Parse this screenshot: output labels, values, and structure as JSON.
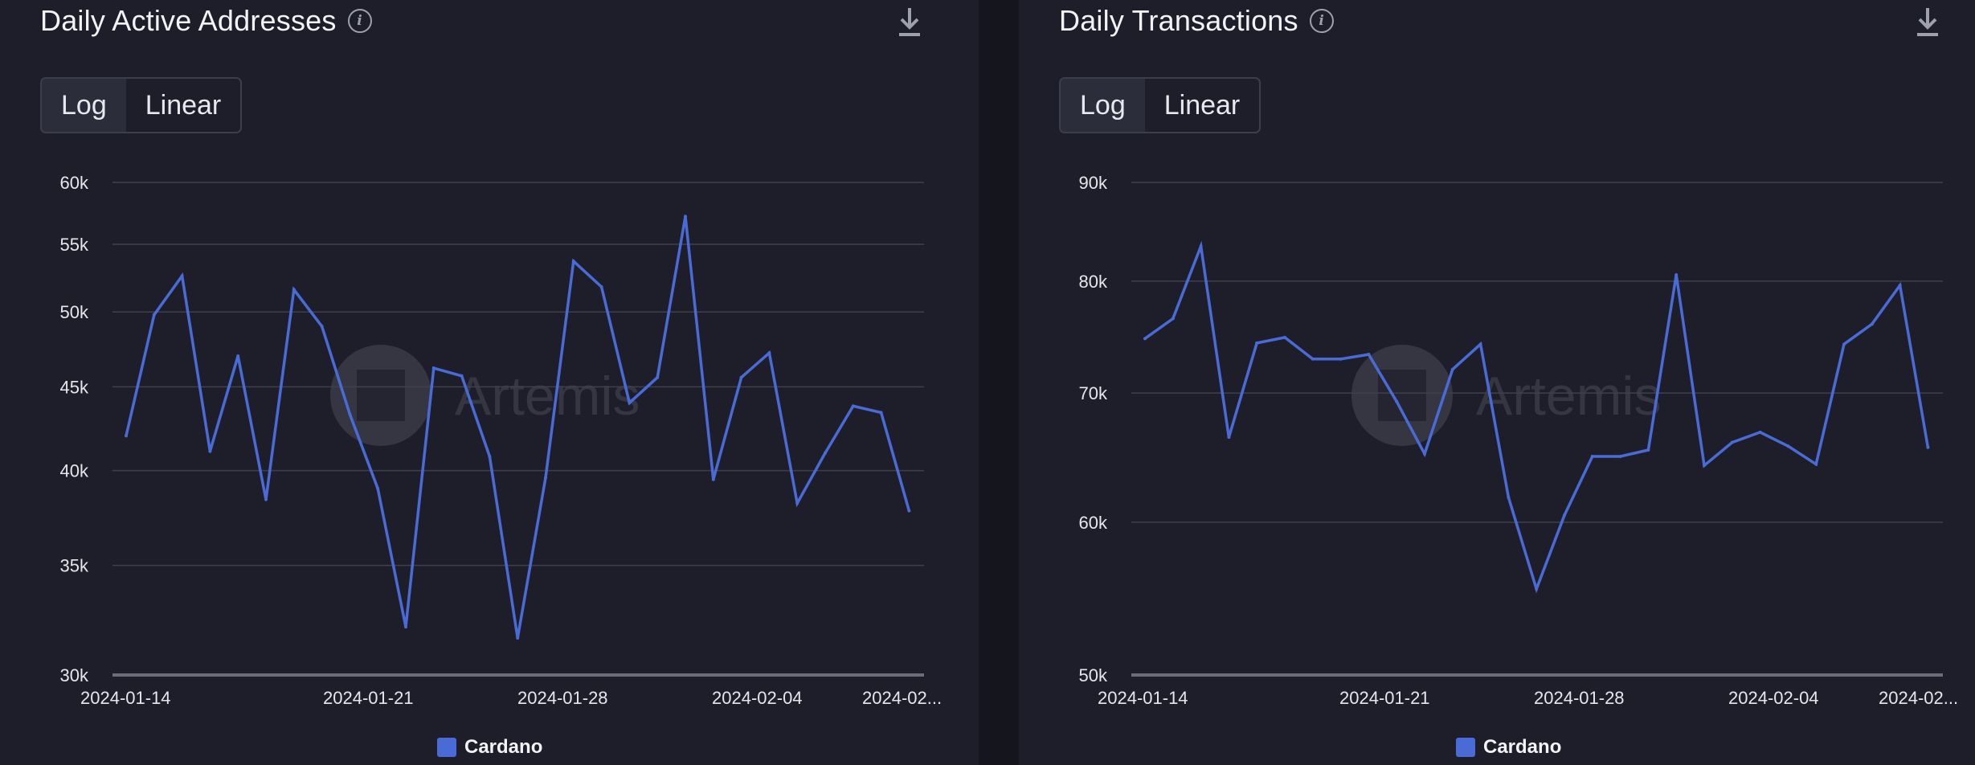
{
  "colors": {
    "background": "#1d1e29",
    "line": "#4a6bd6",
    "grid": "#3e404c",
    "axis_text": "#e6e7ec",
    "watermark": "#4a4b57"
  },
  "watermark_text": "Artemis",
  "panels": [
    {
      "title": "Daily Active Addresses",
      "info_icon": "info-icon",
      "download_icon": "download-icon",
      "toggle": {
        "options": [
          "Log",
          "Linear"
        ],
        "selected": "Log"
      },
      "legend": {
        "label": "Cardano"
      }
    },
    {
      "title": "Daily Transactions",
      "info_icon": "info-icon",
      "download_icon": "download-icon",
      "toggle": {
        "options": [
          "Log",
          "Linear"
        ],
        "selected": "Log"
      },
      "legend": {
        "label": "Cardano"
      }
    }
  ],
  "chart_data": [
    {
      "type": "line",
      "title": "Daily Active Addresses",
      "scale": "log",
      "ylim": [
        30000,
        60000
      ],
      "yticks": [
        30000,
        35000,
        40000,
        45000,
        50000,
        55000,
        60000
      ],
      "ytick_labels": [
        "30k",
        "35k",
        "40k",
        "45k",
        "50k",
        "55k",
        "60k"
      ],
      "xtick_labels": [
        "2024-01-14",
        "2024-01-21",
        "2024-01-28",
        "2024-02-04",
        "2024-02..."
      ],
      "grid": true,
      "legend_position": "bottom-center",
      "series": [
        {
          "name": "Cardano",
          "x": [
            "2024-01-14",
            "2024-01-15",
            "2024-01-16",
            "2024-01-17",
            "2024-01-18",
            "2024-01-19",
            "2024-01-20",
            "2024-01-21",
            "2024-01-22",
            "2024-01-23",
            "2024-01-24",
            "2024-01-25",
            "2024-01-26",
            "2024-01-27",
            "2024-01-28",
            "2024-01-29",
            "2024-01-30",
            "2024-01-31",
            "2024-02-01",
            "2024-02-02",
            "2024-02-03",
            "2024-02-04",
            "2024-02-05",
            "2024-02-06",
            "2024-02-07",
            "2024-02-08",
            "2024-02-09",
            "2024-02-10",
            "2024-02-11",
            "2024-02-12"
          ],
          "values": [
            42000,
            49800,
            52600,
            41100,
            47000,
            38400,
            51600,
            49000,
            43300,
            39000,
            32100,
            46200,
            45700,
            40800,
            31600,
            39600,
            53700,
            51800,
            44000,
            45600,
            57200,
            39500,
            45600,
            47200,
            38200,
            41000,
            43800,
            43400,
            37800,
            null
          ]
        }
      ]
    },
    {
      "type": "line",
      "title": "Daily Transactions",
      "scale": "log",
      "ylim": [
        50000,
        90000
      ],
      "yticks": [
        50000,
        60000,
        70000,
        80000,
        90000
      ],
      "ytick_labels": [
        "50k",
        "60k",
        "70k",
        "80k",
        "90k"
      ],
      "xtick_labels": [
        "2024-01-14",
        "2024-01-21",
        "2024-01-28",
        "2024-02-04",
        "2024-02..."
      ],
      "grid": true,
      "legend_position": "bottom-center",
      "series": [
        {
          "name": "Cardano",
          "x": [
            "2024-01-14",
            "2024-01-15",
            "2024-01-16",
            "2024-01-17",
            "2024-01-18",
            "2024-01-19",
            "2024-01-20",
            "2024-01-21",
            "2024-01-22",
            "2024-01-23",
            "2024-01-24",
            "2024-01-25",
            "2024-01-26",
            "2024-01-27",
            "2024-01-28",
            "2024-01-29",
            "2024-01-30",
            "2024-01-31",
            "2024-02-01",
            "2024-02-02",
            "2024-02-03",
            "2024-02-04",
            "2024-02-05",
            "2024-02-06",
            "2024-02-07",
            "2024-02-08",
            "2024-02-09",
            "2024-02-10",
            "2024-02-11",
            "2024-02-12"
          ],
          "values": [
            74700,
            76500,
            83400,
            66400,
            74300,
            74800,
            72900,
            72900,
            73300,
            69300,
            65100,
            72000,
            74200,
            61800,
            55400,
            60500,
            64900,
            64900,
            65400,
            80600,
            64200,
            66000,
            66800,
            65700,
            64300,
            74200,
            76000,
            79600,
            65600,
            null
          ]
        }
      ]
    }
  ]
}
